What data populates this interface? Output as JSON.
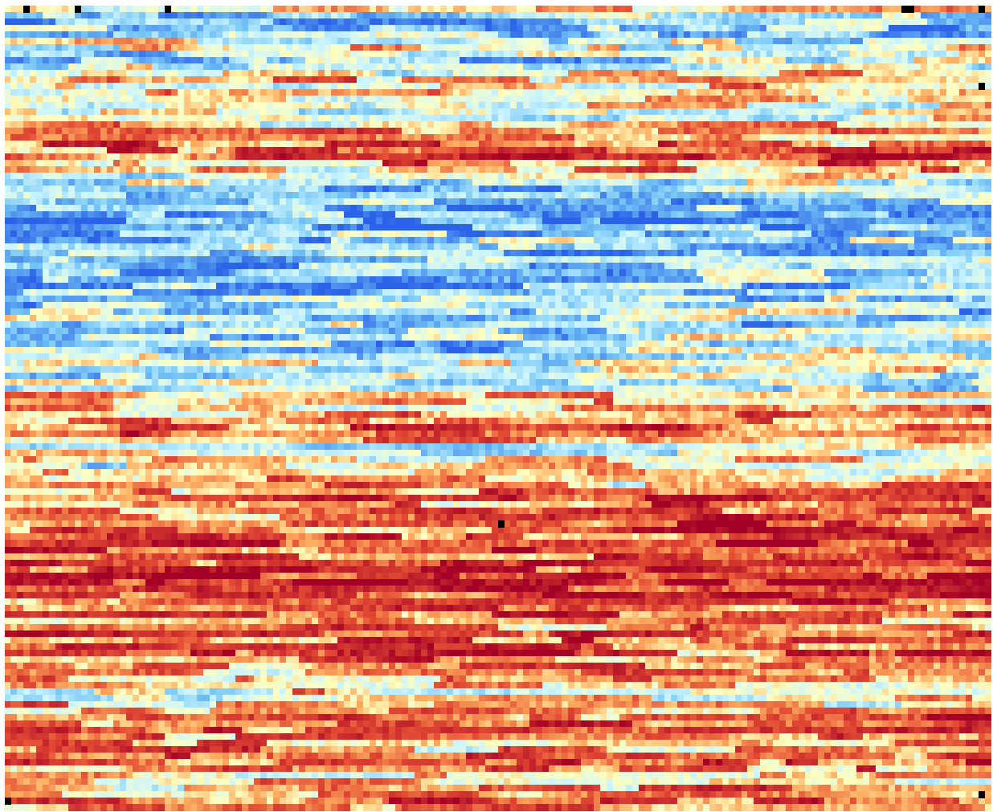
{
  "chart_data": {
    "type": "heatmap",
    "title": "",
    "xlabel": "",
    "ylabel": "",
    "grid": false,
    "legend": "none",
    "colormap": [
      "#0b0000",
      "#a50026",
      "#e34a33",
      "#fdae61",
      "#ffffbf",
      "#c9f4ff",
      "#74c4f5",
      "#2c62e8"
    ],
    "missing_color": "#000000",
    "value_range": [
      -1,
      1
    ],
    "n_cols": 154,
    "n_rows": 125,
    "row_profile": [
      -0.15,
      -0.45,
      -0.55,
      -0.6,
      -0.45,
      -0.3,
      -0.15,
      -0.25,
      -0.35,
      -0.2,
      -0.05,
      0.1,
      0.0,
      0.1,
      0.15,
      0.05,
      -0.1,
      -0.25,
      0.1,
      0.25,
      0.3,
      0.35,
      0.45,
      0.4,
      0.3,
      0.1,
      -0.15,
      -0.35,
      -0.5,
      -0.55,
      -0.6,
      -0.65,
      -0.7,
      -0.75,
      -0.7,
      -0.6,
      -0.55,
      -0.5,
      -0.45,
      -0.4,
      -0.5,
      -0.55,
      -0.6,
      -0.55,
      -0.5,
      -0.45,
      -0.5,
      -0.45,
      -0.4,
      -0.45,
      -0.5,
      -0.45,
      -0.4,
      -0.35,
      -0.3,
      -0.25,
      -0.2,
      -0.25,
      -0.35,
      -0.3,
      0.1,
      0.15,
      0.2,
      0.25,
      0.35,
      0.45,
      0.5,
      0.4,
      -0.1,
      -0.25,
      0.0,
      -0.05,
      0.05,
      0.1,
      0.15,
      0.3,
      0.35,
      0.4,
      0.45,
      0.5,
      0.55,
      0.6,
      0.55,
      0.65,
      0.6,
      0.55,
      0.6,
      0.6,
      0.7,
      0.75,
      0.6,
      0.55,
      0.5,
      0.45,
      0.4,
      0.35,
      0.3,
      0.4,
      0.5,
      0.55,
      0.45,
      0.4,
      0.5,
      0.35,
      0.15,
      0.05,
      0.0,
      -0.05,
      0.1,
      0.2,
      0.4,
      0.5,
      0.45,
      0.35,
      0.3,
      0.25,
      0.4,
      0.5,
      0.3,
      0.1,
      0.05,
      0.2,
      0.3,
      0.35,
      0.25
    ],
    "missing_cells": [
      [
        3,
        0
      ],
      [
        11,
        0
      ],
      [
        25,
        0
      ],
      [
        140,
        0
      ],
      [
        141,
        0
      ],
      [
        152,
        0
      ],
      [
        152,
        12
      ],
      [
        77,
        80
      ],
      [
        0,
        123
      ],
      [
        152,
        122
      ]
    ]
  }
}
